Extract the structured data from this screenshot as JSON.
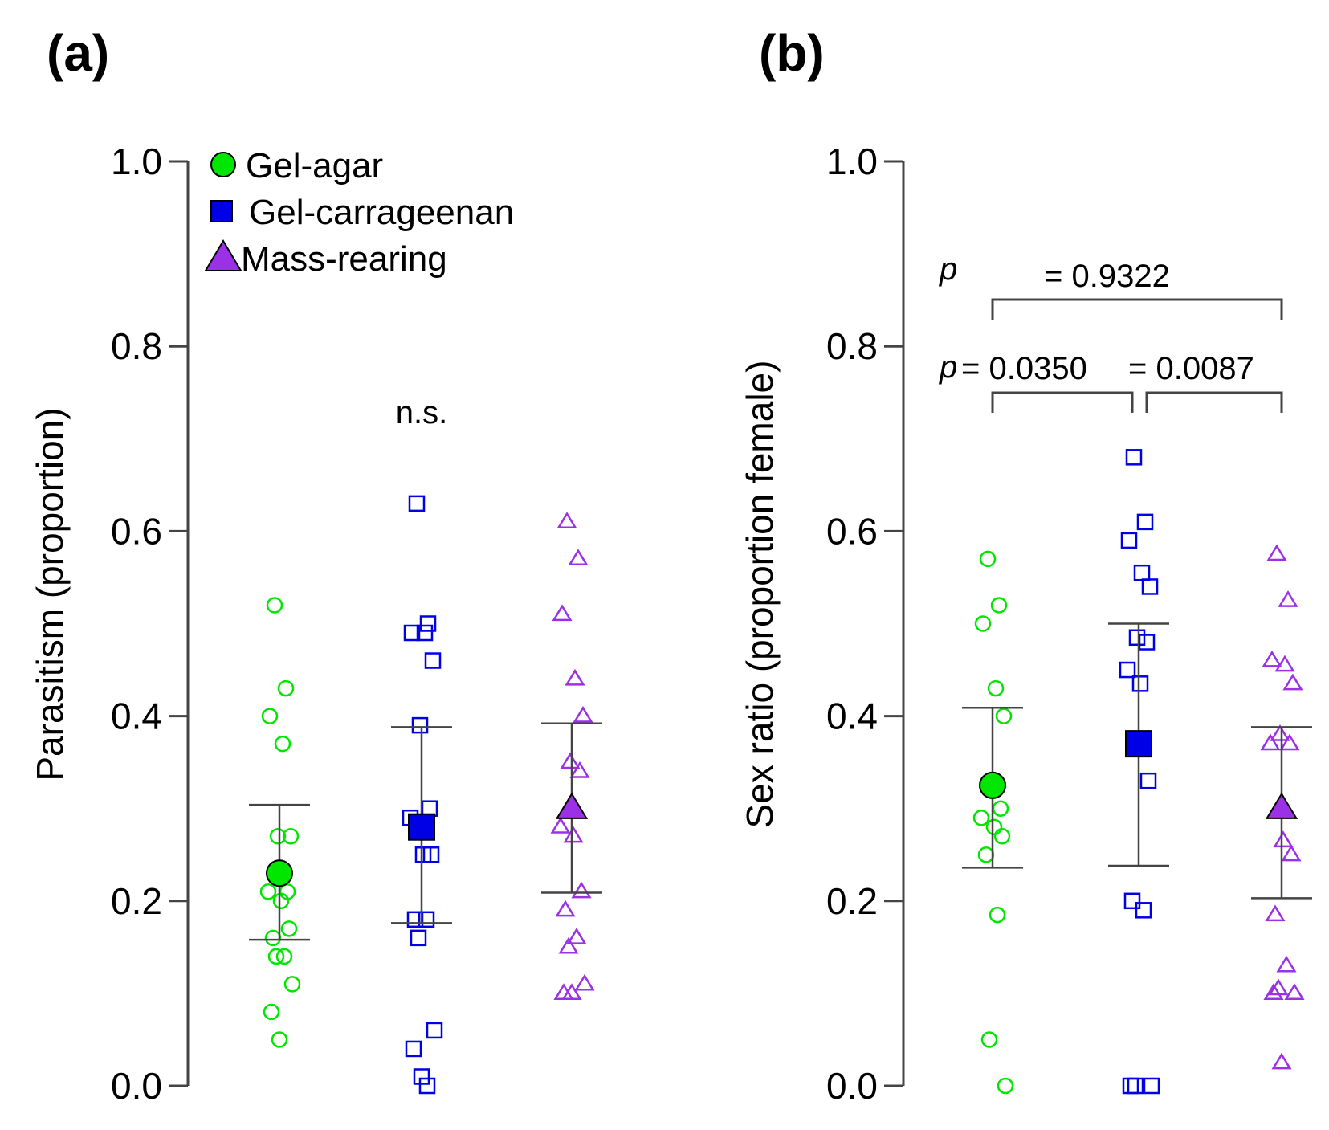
{
  "chart_data": [
    {
      "panel": "(a)",
      "type": "scatter",
      "ylabel": "Parasitism (proportion)",
      "ylim": [
        0.0,
        1.0
      ],
      "yticks": [
        "0.0",
        "0.2",
        "0.4",
        "0.6",
        "0.8",
        "1.0"
      ],
      "significance": "n.s.",
      "legend": [
        "Gel-agar",
        "Gel-carrageenan",
        "Mass-rearing"
      ],
      "groups": [
        {
          "name": "Gel-agar",
          "color": "#00e600",
          "marker": "circle",
          "mean": 0.23,
          "ci_low": 0.158,
          "ci_high": 0.304,
          "points": [
            0.52,
            0.43,
            0.4,
            0.37,
            0.27,
            0.27,
            0.21,
            0.21,
            0.2,
            0.17,
            0.16,
            0.14,
            0.14,
            0.11,
            0.08,
            0.05
          ]
        },
        {
          "name": "Gel-carrageenan",
          "color": "#0000e6",
          "marker": "square",
          "mean": 0.28,
          "ci_low": 0.176,
          "ci_high": 0.388,
          "points": [
            0.63,
            0.5,
            0.49,
            0.49,
            0.46,
            0.39,
            0.3,
            0.29,
            0.25,
            0.25,
            0.18,
            0.18,
            0.16,
            0.06,
            0.04,
            0.01,
            0.0
          ]
        },
        {
          "name": "Mass-rearing",
          "color": "#9b30e6",
          "marker": "triangle",
          "mean": 0.3,
          "ci_low": 0.209,
          "ci_high": 0.392,
          "points": [
            0.61,
            0.57,
            0.51,
            0.44,
            0.4,
            0.35,
            0.34,
            0.28,
            0.27,
            0.21,
            0.19,
            0.16,
            0.15,
            0.11,
            0.1,
            0.1
          ]
        }
      ]
    },
    {
      "panel": "(b)",
      "type": "scatter",
      "ylabel": "Sex ratio (proportion female)",
      "ylim": [
        0.0,
        1.0
      ],
      "yticks": [
        "0.0",
        "0.2",
        "0.4",
        "0.6",
        "0.8",
        "1.0"
      ],
      "comparisons": [
        {
          "pair": [
            "Gel-agar",
            "Mass-rearing"
          ],
          "text": "= 0.9322"
        },
        {
          "pair": [
            "Gel-agar",
            "Gel-carrageenan"
          ],
          "text": "= 0.0350"
        },
        {
          "pair": [
            "Gel-carrageenan",
            "Mass-rearing"
          ],
          "text": "= 0.0087"
        }
      ],
      "p_label": "p",
      "groups": [
        {
          "name": "Gel-agar",
          "color": "#00e600",
          "marker": "circle",
          "mean": 0.325,
          "ci_low": 0.236,
          "ci_high": 0.409,
          "points": [
            0.57,
            0.52,
            0.5,
            0.43,
            0.4,
            0.32,
            0.3,
            0.29,
            0.28,
            0.27,
            0.25,
            0.185,
            0.05,
            0.0
          ]
        },
        {
          "name": "Gel-carrageenan",
          "color": "#0000e6",
          "marker": "square",
          "mean": 0.37,
          "ci_low": 0.238,
          "ci_high": 0.5,
          "points": [
            0.68,
            0.61,
            0.59,
            0.555,
            0.54,
            0.485,
            0.48,
            0.45,
            0.435,
            0.33,
            0.2,
            0.19,
            0.0,
            0.0,
            0.0
          ]
        },
        {
          "name": "Mass-rearing",
          "color": "#9b30e6",
          "marker": "triangle",
          "mean": 0.3,
          "ci_low": 0.203,
          "ci_high": 0.388,
          "points": [
            0.575,
            0.525,
            0.46,
            0.455,
            0.435,
            0.38,
            0.37,
            0.37,
            0.265,
            0.25,
            0.185,
            0.13,
            0.105,
            0.1,
            0.1,
            0.025
          ]
        }
      ]
    }
  ]
}
